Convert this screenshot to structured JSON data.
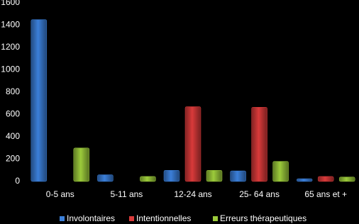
{
  "chart_data": {
    "type": "bar",
    "categories": [
      "0-5 ans",
      "5-11 ans",
      "12-24 ans",
      "25- 64 ans",
      "65 ans et +"
    ],
    "series": [
      {
        "name": "Involontaires",
        "color": "#3b7fd9",
        "values": [
          1450,
          60,
          100,
          95,
          25
        ]
      },
      {
        "name": "Intentionnelles",
        "color": "#d93a3a",
        "values": [
          0,
          0,
          670,
          665,
          45
        ]
      },
      {
        "name": "Erreurs thérapeutiques",
        "color": "#9ccb3b",
        "values": [
          300,
          45,
          100,
          180,
          40
        ]
      }
    ],
    "ylim": [
      0,
      1600
    ],
    "yticks": [
      0,
      200,
      400,
      600,
      800,
      1000,
      1200,
      1400,
      1600
    ],
    "grid": false,
    "legend": "bottom"
  }
}
